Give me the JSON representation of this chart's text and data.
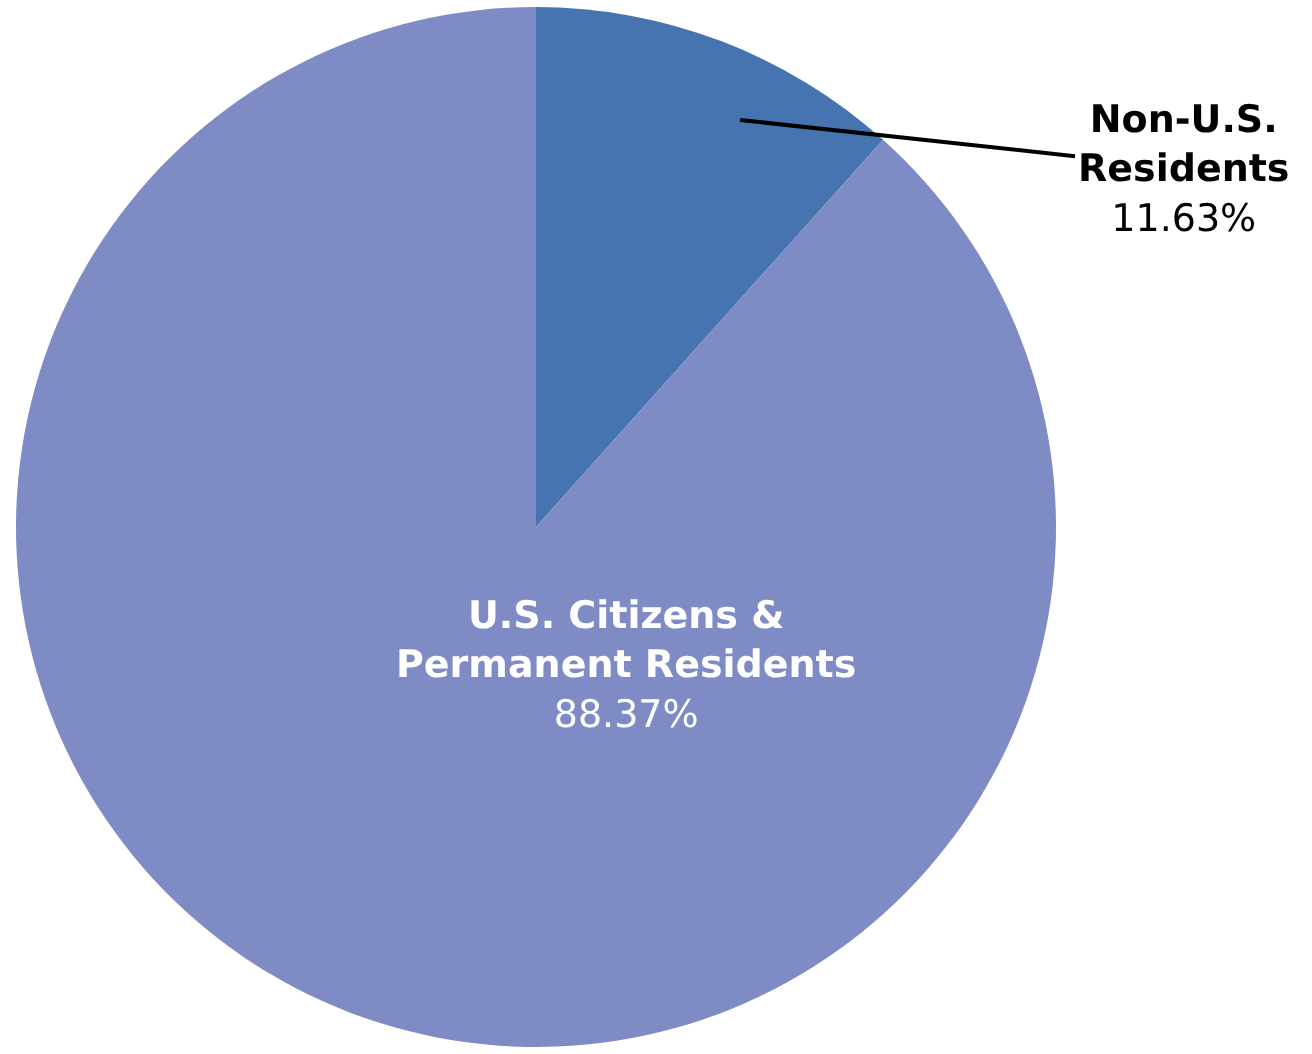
{
  "chart_data": {
    "type": "pie",
    "categories": [
      "Non-U.S.\nResidents",
      "U.S. Citizens &\nPermanent Residents"
    ],
    "values": [
      11.63,
      88.37
    ],
    "value_labels": [
      "11.63%",
      "88.37%"
    ],
    "colors": [
      "#4674b0",
      "#7f8bc4"
    ],
    "legend": false
  }
}
